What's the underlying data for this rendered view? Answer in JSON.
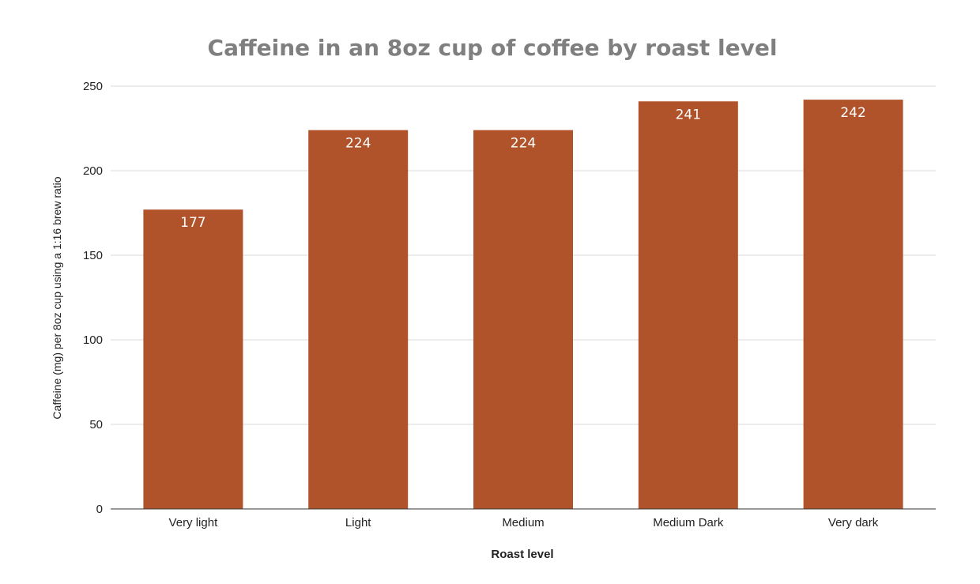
{
  "chart_data": {
    "type": "bar",
    "title": "Caffeine in an 8oz cup of coffee by roast level",
    "xlabel": "Roast level",
    "ylabel": "Caffeine (mg) per 8oz cup using a 1:16 brew ratio",
    "categories": [
      "Very light",
      "Light",
      "Medium",
      "Medium Dark",
      "Very dark"
    ],
    "values": [
      177,
      224,
      224,
      241,
      242
    ],
    "data_labels": [
      "177",
      "224",
      "224",
      "241",
      "242"
    ],
    "ylim": [
      0,
      250
    ],
    "yticks": [
      0,
      50,
      100,
      150,
      200,
      250
    ],
    "grid": true,
    "legend": "none",
    "bar_color": "#b0532a"
  }
}
